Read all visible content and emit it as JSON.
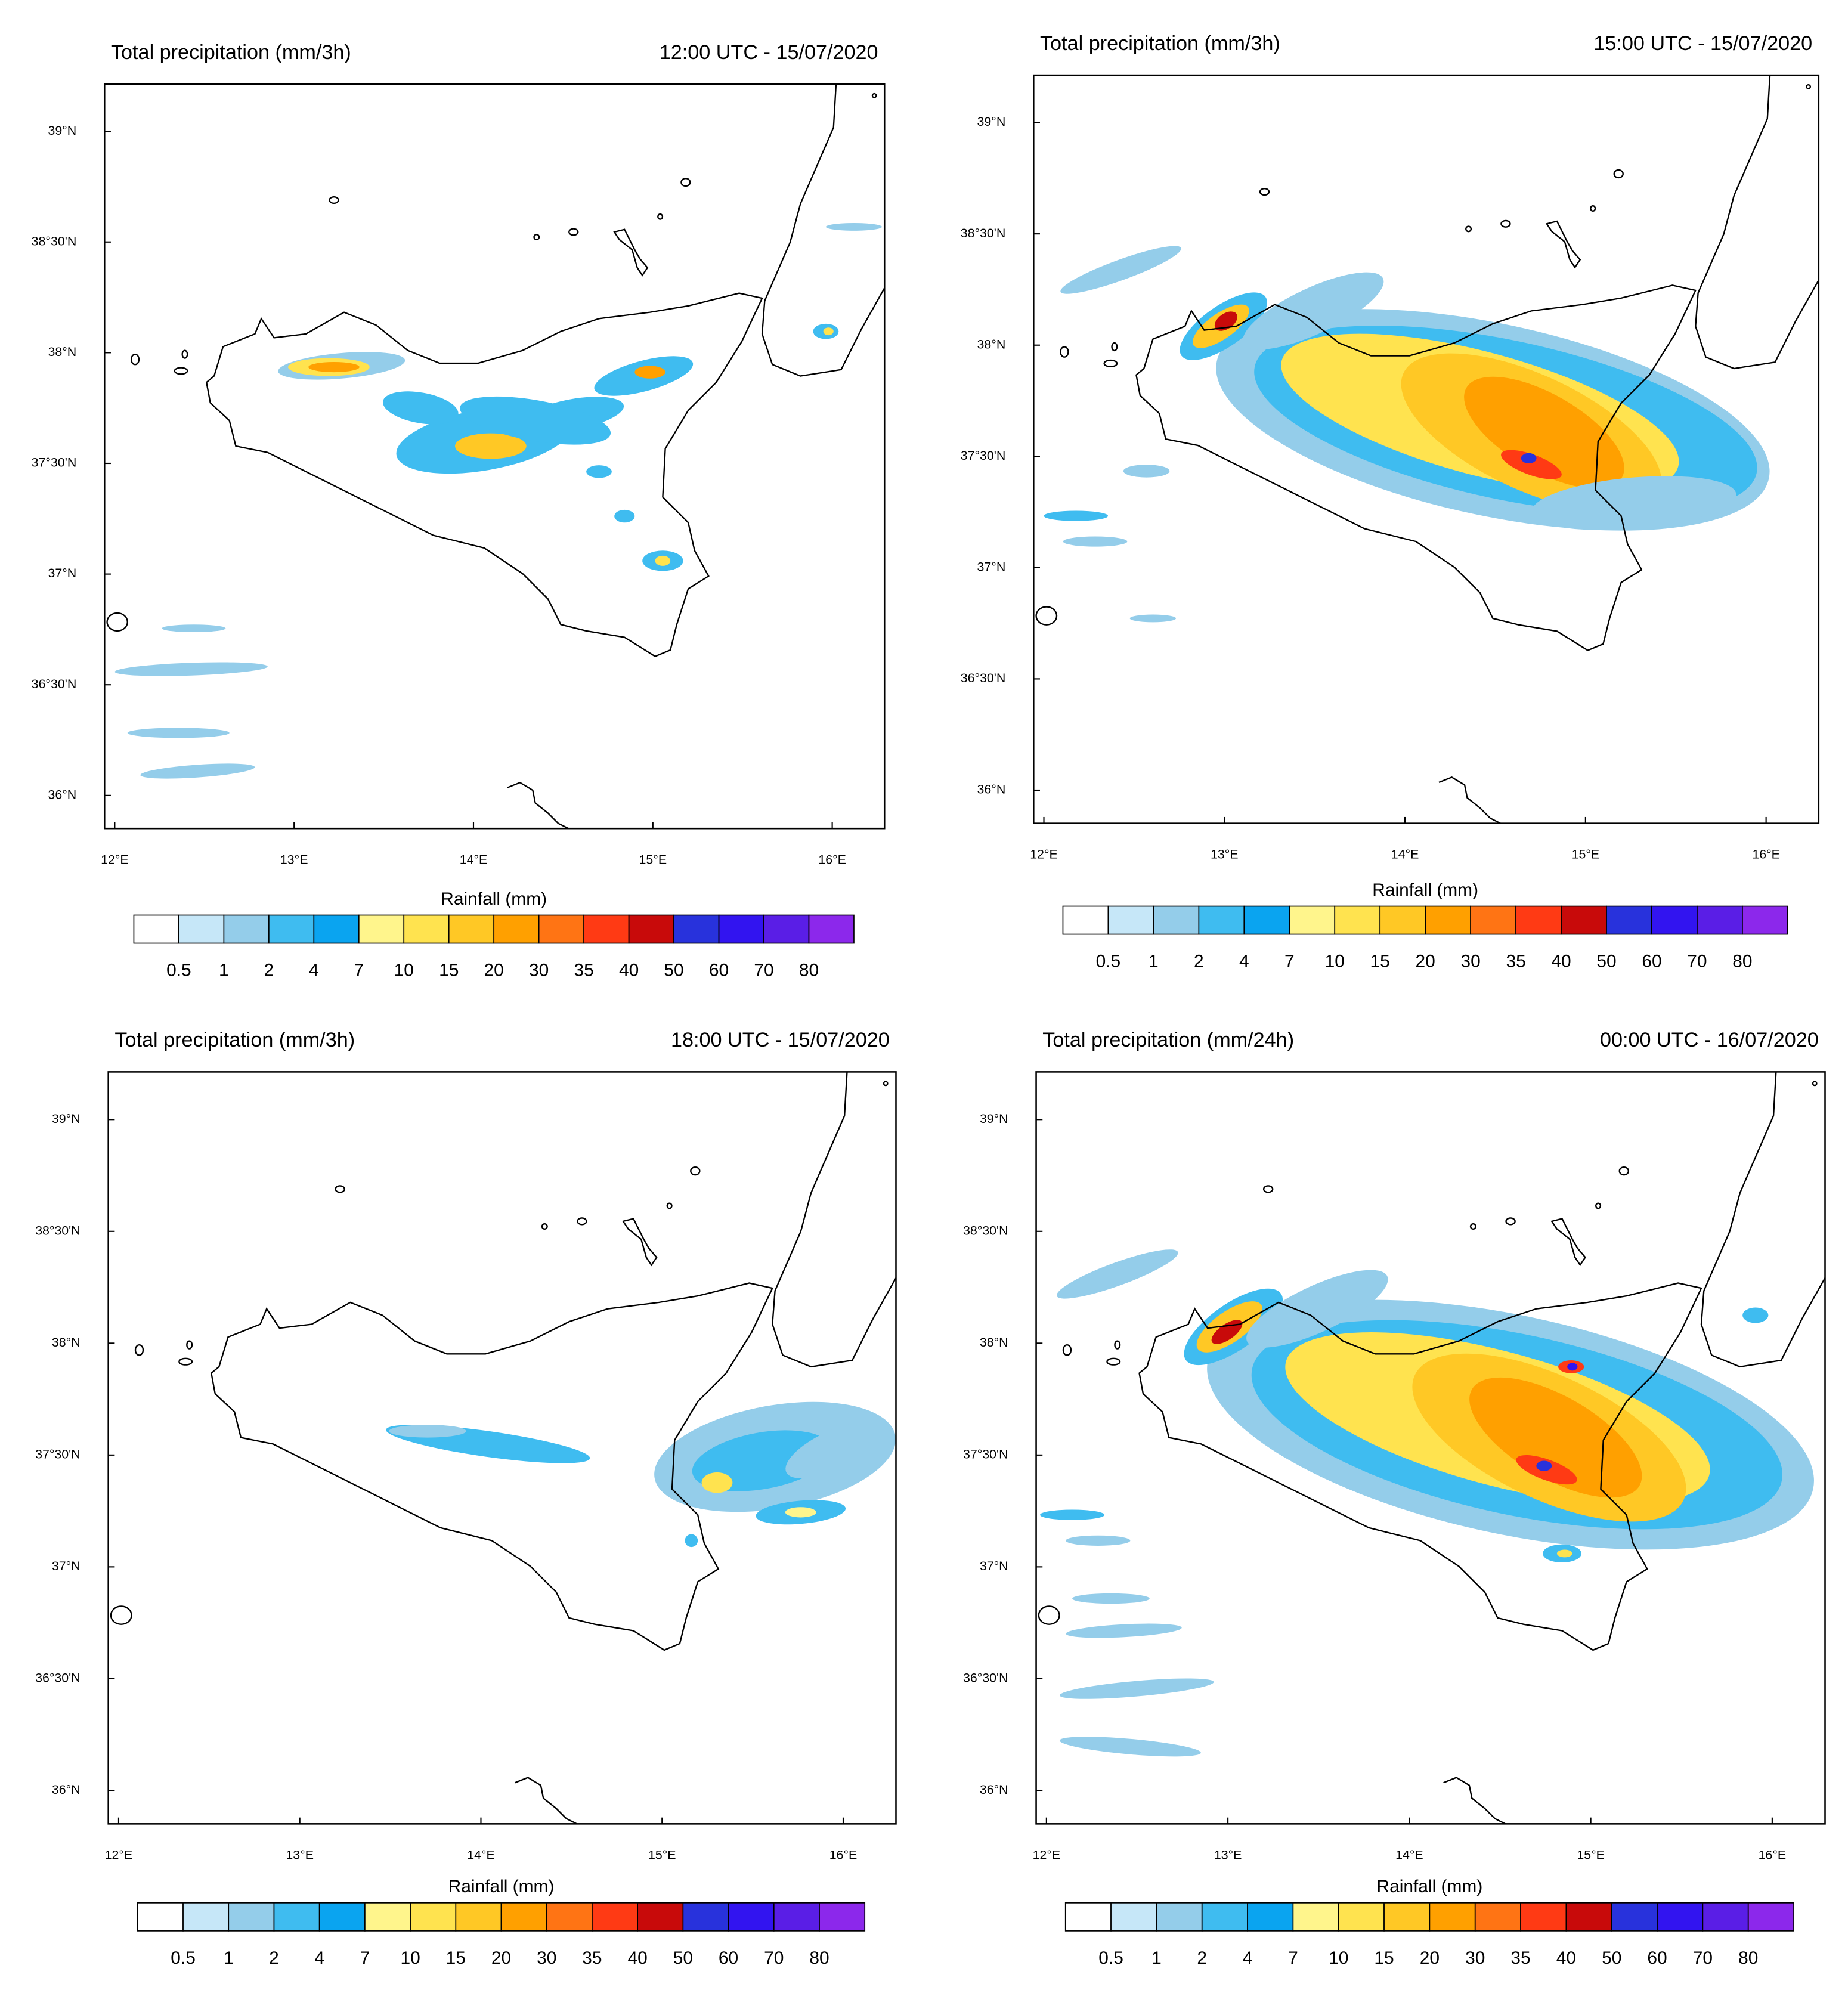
{
  "panels": [
    {
      "title": "Total precipitation (mm/3h)",
      "time": "12:00 UTC - 15/07/2020"
    },
    {
      "title": "Total precipitation (mm/3h)",
      "time": "15:00 UTC - 15/07/2020"
    },
    {
      "title": "Total precipitation (mm/3h)",
      "time": "18:00 UTC - 15/07/2020"
    },
    {
      "title": "Total precipitation (mm/24h)",
      "time": "00:00 UTC - 16/07/2020"
    }
  ],
  "lat_labels": [
    "39°N",
    "38°30'N",
    "38°N",
    "37°30'N",
    "37°N",
    "36°30'N",
    "36°N"
  ],
  "lon_labels": [
    "12°E",
    "13°E",
    "14°E",
    "15°E",
    "16°E"
  ],
  "colorbar": {
    "label": "Rainfall  (mm)",
    "levels": [
      0.5,
      1,
      2,
      4,
      7,
      10,
      15,
      20,
      30,
      35,
      40,
      50,
      60,
      70,
      80
    ],
    "colors": [
      "#ffffff",
      "#c6e7f8",
      "#94cdea",
      "#3fbcf0",
      "#0aa4f0",
      "#fff58c",
      "#ffe34f",
      "#ffc825",
      "#ffa000",
      "#ff7414",
      "#ff3a14",
      "#c80a0a",
      "#2832dc",
      "#3214f0",
      "#5a1ee6",
      "#8c28eb"
    ]
  }
}
